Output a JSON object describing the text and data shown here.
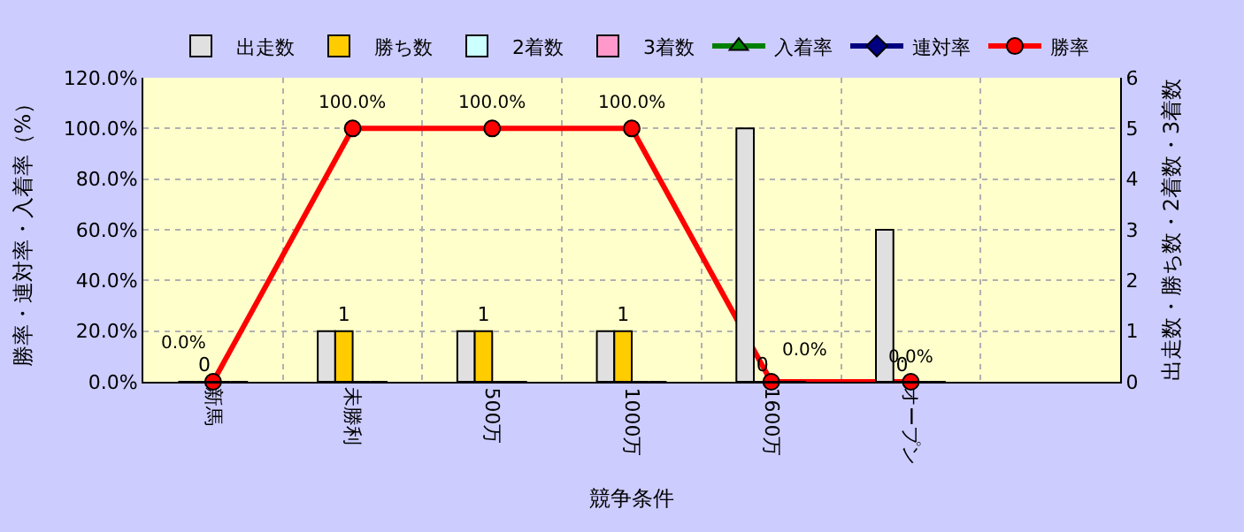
{
  "chart_data": {
    "type": "bar",
    "categories": [
      "新馬",
      "未勝利",
      "500万",
      "1000万",
      "1600万",
      "オープン",
      null
    ],
    "xlabel": "競争条件",
    "ylabel": "勝率・連対率・入着率（%）",
    "y2label": "出走数・勝ち数・2着数・3着数",
    "series": [
      {
        "name": "出走数",
        "axis": "y2",
        "color": "#e0e0e0",
        "values": [
          0,
          1,
          1,
          1,
          5,
          3,
          null
        ]
      },
      {
        "name": "勝ち数",
        "axis": "y2",
        "color": "#ffcc00",
        "values": [
          0,
          1,
          1,
          1,
          0,
          0,
          null
        ],
        "value_labels": [
          "0",
          "1",
          "1",
          "1",
          "0",
          "0",
          null
        ]
      },
      {
        "name": "2着数",
        "axis": "y2",
        "color": "#ccffff",
        "values": [
          0,
          0,
          0,
          0,
          0,
          0,
          null
        ]
      },
      {
        "name": "3着数",
        "axis": "y2",
        "color": "#ff99cc",
        "values": [
          0,
          0,
          0,
          0,
          0,
          0,
          null
        ]
      },
      {
        "name": "入着率",
        "type": "line",
        "color": "#008000",
        "marker": "triangle",
        "values": [
          null,
          null,
          null,
          null,
          null,
          null,
          null
        ]
      },
      {
        "name": "連対率",
        "type": "line",
        "color": "#000080",
        "marker": "diamond",
        "values": [
          null,
          null,
          null,
          null,
          null,
          null,
          null
        ]
      },
      {
        "name": "勝率",
        "type": "line",
        "color": "#ff0000",
        "marker": "circle",
        "values": [
          0,
          100,
          100,
          100,
          0,
          0,
          null
        ],
        "value_labels": [
          "0.0%",
          "100.0%",
          "100.0%",
          "100.0%",
          "0.0%",
          "0.0%",
          null
        ]
      }
    ],
    "ylim": [
      0,
      120
    ],
    "yticks": [
      {
        "value": 0,
        "label": "0.0%"
      },
      {
        "value": 20,
        "label": "20.0%"
      },
      {
        "value": 40,
        "label": "40.0%"
      },
      {
        "value": 60,
        "label": "60.0%"
      },
      {
        "value": 80,
        "label": "80.0%"
      },
      {
        "value": 100,
        "label": "100.0%"
      },
      {
        "value": 120,
        "label": "120.0%"
      }
    ],
    "y2lim": [
      0,
      6
    ],
    "y2ticks": [
      0,
      1,
      2,
      3,
      4,
      5,
      6
    ],
    "grid": true,
    "legend": "top"
  }
}
